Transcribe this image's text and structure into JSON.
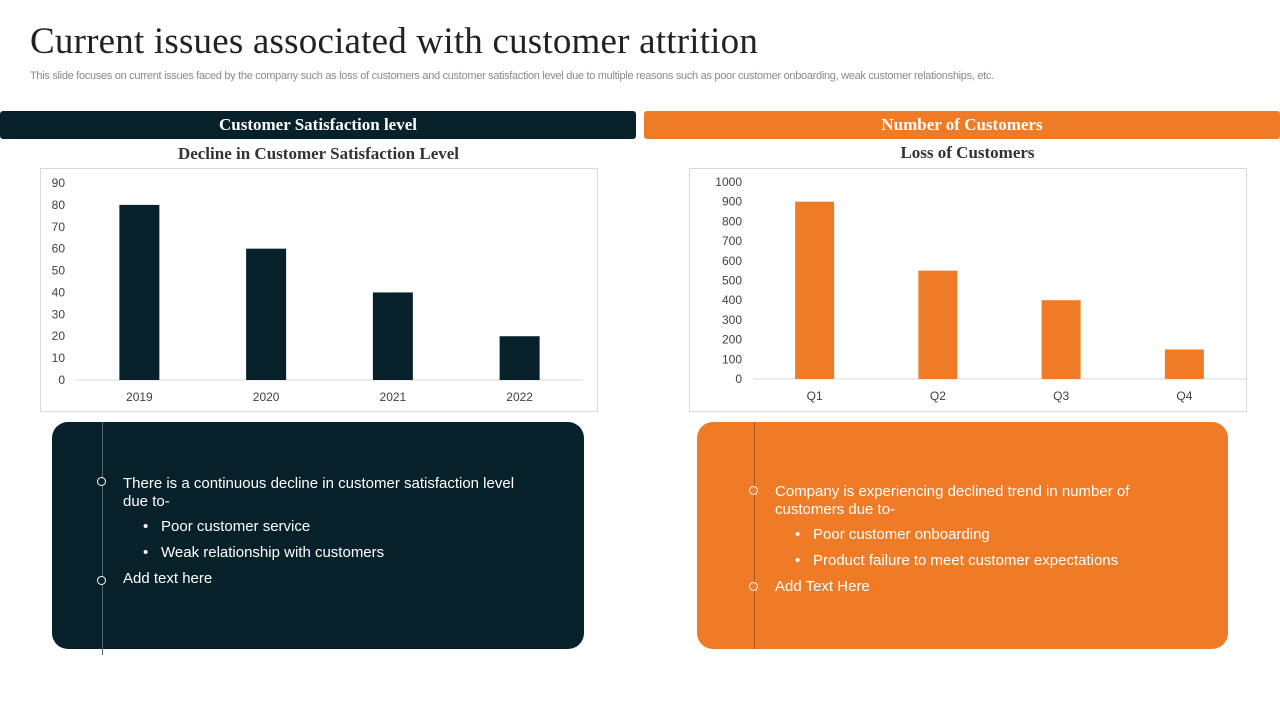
{
  "title": "Current issues associated with customer attrition",
  "subtitle": "This slide focuses on current issues faced by the company such as loss of customers and customer satisfaction level due to multiple reasons such as poor customer onboarding, weak customer relationships, etc.",
  "colors": {
    "dark": "#07212a",
    "orange": "#ef7b27"
  },
  "left": {
    "header": "Customer Satisfaction level",
    "card": {
      "point1": "There is a continuous decline in customer satisfaction level due to-",
      "bullets": [
        "Poor customer service",
        "Weak relationship with customers"
      ],
      "point2": "Add text here"
    }
  },
  "right": {
    "header": "Number of Customers",
    "card": {
      "point1": "Company is experiencing declined trend in number of customers due to-",
      "bullets": [
        "Poor customer onboarding",
        "Product failure to meet customer expectations"
      ],
      "point2": "Add Text Here"
    }
  },
  "chart_data": [
    {
      "type": "bar",
      "title": "Decline in Customer Satisfaction Level",
      "categories": [
        "2019",
        "2020",
        "2021",
        "2022"
      ],
      "values": [
        80,
        60,
        40,
        20
      ],
      "ylim": [
        0,
        90
      ],
      "yticks": [
        0,
        10,
        20,
        30,
        40,
        50,
        60,
        70,
        80,
        90
      ],
      "color": "#07212a",
      "grid": false,
      "xlabel": "",
      "ylabel": ""
    },
    {
      "type": "bar",
      "title": "Loss of Customers",
      "categories": [
        "Q1",
        "Q2",
        "Q3",
        "Q4"
      ],
      "values": [
        900,
        550,
        400,
        150
      ],
      "ylim": [
        0,
        1000
      ],
      "yticks": [
        0,
        100,
        200,
        300,
        400,
        500,
        600,
        700,
        800,
        900,
        1000
      ],
      "color": "#ef7b27",
      "grid": false,
      "xlabel": "",
      "ylabel": ""
    }
  ]
}
